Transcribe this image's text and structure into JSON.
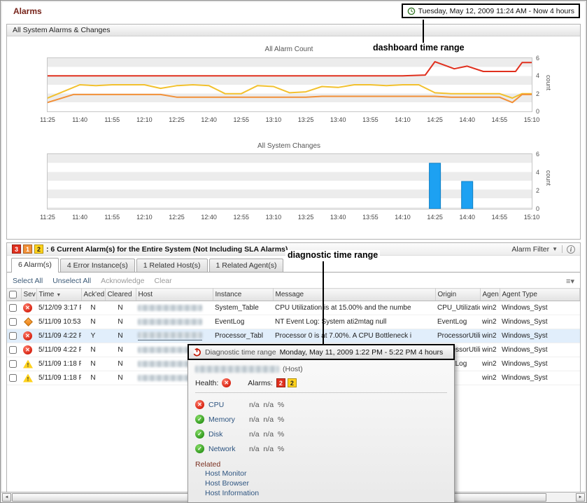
{
  "page": {
    "title": "Alarms",
    "time_range": "Tuesday, May 12, 2009 11:24 AM - Now 4 hours"
  },
  "annotations": {
    "dashboard": "dashboard time range",
    "diagnostic": "diagnostic time range"
  },
  "alarms_panel": {
    "title": "All System Alarms & Changes"
  },
  "chart_data": [
    {
      "type": "line",
      "title": "All Alarm Count",
      "xlabel": "",
      "ylabel": "count",
      "ylim": [
        0,
        6
      ],
      "yticks": [
        0,
        2,
        4,
        6
      ],
      "grid": "horizontal-bands",
      "legend": "none",
      "x_ticks": [
        "11:25",
        "11:40",
        "11:55",
        "12:10",
        "12:25",
        "12:40",
        "12:55",
        "13:10",
        "13:25",
        "13:40",
        "13:55",
        "14:10",
        "14:25",
        "14:40",
        "14:55",
        "15:10"
      ],
      "series": [
        {
          "name": "red",
          "color": "#e0301e",
          "points": [
            [
              0,
              4
            ],
            [
              3,
              4
            ],
            [
              6,
              4
            ],
            [
              9,
              4
            ],
            [
              11,
              4
            ],
            [
              11.7,
              4.1
            ],
            [
              12,
              5.6
            ],
            [
              12.6,
              4.8
            ],
            [
              13,
              5.1
            ],
            [
              13.5,
              4.5
            ],
            [
              14.5,
              4.5
            ],
            [
              14.7,
              5.5
            ],
            [
              15,
              5.5
            ]
          ]
        },
        {
          "name": "yellow",
          "color": "#f2c12e",
          "points": [
            [
              0,
              1.5
            ],
            [
              1,
              3
            ],
            [
              1.5,
              2.9
            ],
            [
              2,
              3
            ],
            [
              3,
              3
            ],
            [
              3.5,
              2.6
            ],
            [
              4,
              2.9
            ],
            [
              4.5,
              3
            ],
            [
              5,
              2.9
            ],
            [
              5.5,
              2
            ],
            [
              6,
              2
            ],
            [
              6.5,
              2.9
            ],
            [
              7,
              2.8
            ],
            [
              7.5,
              2.1
            ],
            [
              8,
              2.2
            ],
            [
              8.5,
              2.8
            ],
            [
              9,
              2.7
            ],
            [
              9.5,
              3
            ],
            [
              10,
              3
            ],
            [
              10.5,
              2.9
            ],
            [
              11,
              3
            ],
            [
              11.5,
              3
            ],
            [
              12,
              2.1
            ],
            [
              12.5,
              2
            ],
            [
              13,
              2
            ],
            [
              14,
              2
            ],
            [
              14.4,
              1.5
            ],
            [
              14.7,
              2
            ],
            [
              15,
              2
            ]
          ]
        },
        {
          "name": "orange",
          "color": "#f29038",
          "points": [
            [
              0,
              1
            ],
            [
              0.8,
              1.9
            ],
            [
              3.5,
              1.9
            ],
            [
              4,
              1.6
            ],
            [
              8,
              1.6
            ],
            [
              8.5,
              1.7
            ],
            [
              12,
              1.7
            ],
            [
              12.5,
              1.6
            ],
            [
              14,
              1.6
            ],
            [
              14.4,
              1
            ],
            [
              14.7,
              1.9
            ],
            [
              15,
              1.9
            ]
          ]
        }
      ]
    },
    {
      "type": "bar",
      "title": "All System Changes",
      "xlabel": "",
      "ylabel": "count",
      "ylim": [
        0,
        6
      ],
      "yticks": [
        0,
        2,
        4,
        6
      ],
      "bar_color": "#1da1f2",
      "bar_stroke": "#0d7fc4",
      "x_ticks": [
        "11:25",
        "11:40",
        "11:55",
        "12:10",
        "12:25",
        "12:40",
        "12:55",
        "13:10",
        "13:25",
        "13:40",
        "13:55",
        "14:10",
        "14:25",
        "14:40",
        "14:55",
        "15:10"
      ],
      "bars": [
        {
          "x": 12,
          "x_label": "14:25",
          "value": 5
        },
        {
          "x": 13,
          "x_label": "14:40",
          "value": 3
        }
      ]
    }
  ],
  "alarm_summary": {
    "badges": [
      {
        "count": "3",
        "color": "#e0301e",
        "text_color": "#ffffff"
      },
      {
        "count": "1",
        "color": "#f29038",
        "text_color": "#ffffff"
      },
      {
        "count": "2",
        "color": "#ffd21c",
        "text_color": "#222222"
      }
    ],
    "text": ": 6 Current Alarm(s) for the Entire System (Not Including SLA Alarms)",
    "filter_label": "Alarm Filter"
  },
  "tabs": [
    {
      "label": "6 Alarm(s)",
      "active": true
    },
    {
      "label": "4 Error Instance(s)",
      "active": false
    },
    {
      "label": "1 Related Host(s)",
      "active": false
    },
    {
      "label": "1 Related Agent(s)",
      "active": false
    }
  ],
  "toolbar": {
    "select_all": "Select All",
    "unselect_all": "Unselect All",
    "acknowledge": "Acknowledge",
    "clear": "Clear"
  },
  "table": {
    "sort_desc_icon": "▼",
    "columns": [
      {
        "label": "",
        "type": "check"
      },
      {
        "label": "Sev"
      },
      {
        "label": "Time",
        "sorted": true
      },
      {
        "label": "Ack'ed"
      },
      {
        "label": "Cleared"
      },
      {
        "label": "Host"
      },
      {
        "label": "Instance"
      },
      {
        "label": "Message"
      },
      {
        "label": "Origin"
      },
      {
        "label": "Agen"
      },
      {
        "label": "Agent Type"
      }
    ],
    "rows": [
      {
        "sev": "error",
        "time": "5/12/09 3:17 F",
        "acked": "N",
        "cleared": "N",
        "host_redacted": true,
        "instance": "System_Table",
        "message": "CPU Utilization is at 15.00% and the numbe",
        "origin": "CPU_Utilization",
        "agent": "win2",
        "agent_type": "Windows_Syst",
        "highlight": false
      },
      {
        "sev": "fatal",
        "time": "5/11/09 10:53",
        "acked": "N",
        "cleared": "N",
        "host_redacted": true,
        "instance": "EventLog",
        "message": "NT Event Log: System ati2mtag null",
        "origin": "EventLog",
        "agent": "win2",
        "agent_type": "Windows_Syst",
        "highlight": false
      },
      {
        "sev": "error",
        "time": "5/11/09 4:22 F",
        "acked": "Y",
        "cleared": "N",
        "host_redacted": true,
        "instance": "Processor_Tabl",
        "message": "Processor 0 is at 7.00%. A CPU Bottleneck i",
        "origin": "ProcessorUtiliza",
        "agent": "win2",
        "agent_type": "Windows_Syst",
        "highlight": true
      },
      {
        "sev": "error",
        "time": "5/11/09 4:22 F",
        "acked": "N",
        "cleared": "N",
        "host_redacted": true,
        "instance": "",
        "message": "",
        "origin": "ProcessorUtiliza",
        "agent": "win2",
        "agent_type": "Windows_Syst",
        "highlight": false
      },
      {
        "sev": "warning",
        "time": "5/11/09 1:18 F",
        "acked": "N",
        "cleared": "N",
        "host_redacted": true,
        "instance": "",
        "message": "",
        "origin": "EventLog",
        "agent": "win2",
        "agent_type": "Windows_Syst",
        "highlight": false
      },
      {
        "sev": "warning",
        "time": "5/11/09 1:18 F",
        "acked": "N",
        "cleared": "N",
        "host_redacted": true,
        "instance": "",
        "message": "",
        "origin": "",
        "agent": "win2",
        "agent_type": "Windows_Syst",
        "highlight": false
      }
    ]
  },
  "popup": {
    "header_label": "Diagnostic time range",
    "header_range": "Monday, May 11, 2009  1:22 PM - 5:22 PM  4 hours",
    "host_suffix": "(Host)",
    "health_label": "Health:",
    "alarms_label": "Alarms:",
    "alarm_badges": [
      {
        "count": "2",
        "color": "#e0301e",
        "text_color": "#ffffff"
      },
      {
        "count": "2",
        "color": "#ffd21c",
        "text_color": "#222222"
      }
    ],
    "metrics": [
      {
        "icon": "error",
        "label": "CPU",
        "value": "n/a  n/a  %"
      },
      {
        "icon": "ok",
        "label": "Memory",
        "value": "n/a  n/a  %"
      },
      {
        "icon": "ok",
        "label": "Disk",
        "value": "n/a  n/a  %"
      },
      {
        "icon": "ok",
        "label": "Network",
        "value": "n/a  n/a  %"
      }
    ],
    "related_label": "Related",
    "related_links": [
      "Host Monitor",
      "Host Browser",
      "Host Information"
    ]
  }
}
